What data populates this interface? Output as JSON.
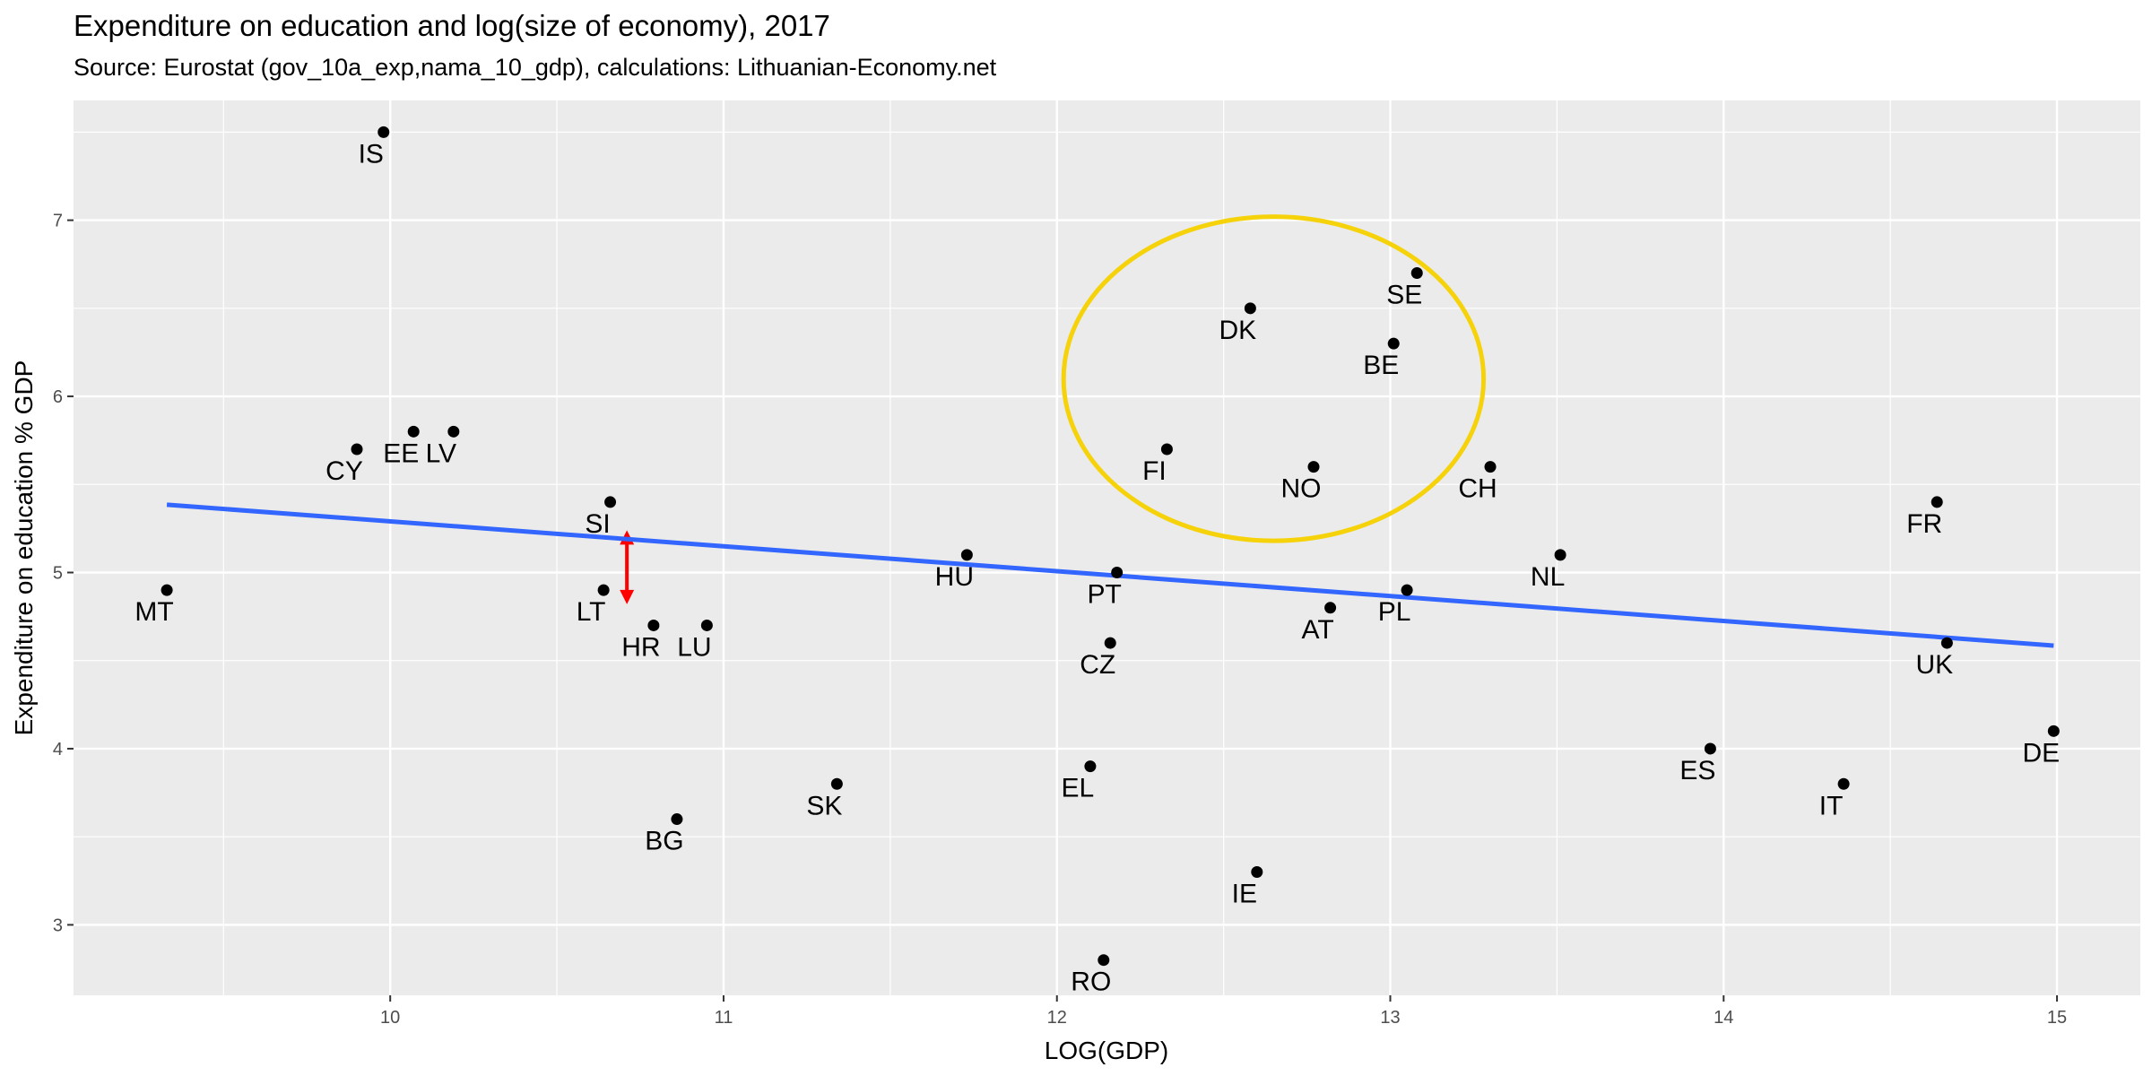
{
  "header": {
    "title": "Expenditure on education and log(size of economy), 2017",
    "subtitle": "Source: Eurostat (gov_10a_exp,nama_10_gdp), calculations: Lithuanian-Economy.net"
  },
  "colors": {
    "panel": "#ebebeb",
    "grid": "#ffffff",
    "point": "#000000",
    "trend": "#3366ff",
    "highlight_ellipse": "#f5d20a",
    "gap_arrow": "#ff0000"
  },
  "chart_data": {
    "type": "scatter",
    "title": "Expenditure on education and log(size of economy), 2017",
    "subtitle": "Source: Eurostat (gov_10a_exp,nama_10_gdp), calculations: Lithuanian-Economy.net",
    "xlabel": "LOG(GDP)",
    "ylabel": "Expenditure on education % GDP",
    "xlim": [
      9.05,
      15.25
    ],
    "ylim": [
      2.6,
      7.68
    ],
    "xticks": [
      10,
      11,
      12,
      13,
      14,
      15
    ],
    "yticks": [
      3,
      4,
      5,
      6,
      7
    ],
    "grid": true,
    "legend": "none",
    "points": [
      {
        "label": "IS",
        "x": 9.98,
        "y": 7.5
      },
      {
        "label": "CY",
        "x": 9.9,
        "y": 5.7
      },
      {
        "label": "EE",
        "x": 10.07,
        "y": 5.8
      },
      {
        "label": "LV",
        "x": 10.19,
        "y": 5.8
      },
      {
        "label": "MT",
        "x": 9.33,
        "y": 4.9
      },
      {
        "label": "SI",
        "x": 10.66,
        "y": 5.4
      },
      {
        "label": "LT",
        "x": 10.64,
        "y": 4.9
      },
      {
        "label": "HR",
        "x": 10.79,
        "y": 4.7
      },
      {
        "label": "LU",
        "x": 10.95,
        "y": 4.7
      },
      {
        "label": "BG",
        "x": 10.86,
        "y": 3.6
      },
      {
        "label": "SK",
        "x": 11.34,
        "y": 3.8
      },
      {
        "label": "HU",
        "x": 11.73,
        "y": 5.1
      },
      {
        "label": "PT",
        "x": 12.18,
        "y": 5.0
      },
      {
        "label": "CZ",
        "x": 12.16,
        "y": 4.6
      },
      {
        "label": "EL",
        "x": 12.1,
        "y": 3.9
      },
      {
        "label": "RO",
        "x": 12.14,
        "y": 2.8
      },
      {
        "label": "FI",
        "x": 12.33,
        "y": 5.7
      },
      {
        "label": "IE",
        "x": 12.6,
        "y": 3.3
      },
      {
        "label": "DK",
        "x": 12.58,
        "y": 6.5
      },
      {
        "label": "NO",
        "x": 12.77,
        "y": 5.6
      },
      {
        "label": "AT",
        "x": 12.82,
        "y": 4.8
      },
      {
        "label": "BE",
        "x": 13.01,
        "y": 6.3
      },
      {
        "label": "SE",
        "x": 13.08,
        "y": 6.7
      },
      {
        "label": "PL",
        "x": 13.05,
        "y": 4.9
      },
      {
        "label": "CH",
        "x": 13.3,
        "y": 5.6
      },
      {
        "label": "NL",
        "x": 13.51,
        "y": 5.1
      },
      {
        "label": "ES",
        "x": 13.96,
        "y": 4.0
      },
      {
        "label": "IT",
        "x": 14.36,
        "y": 3.8
      },
      {
        "label": "FR",
        "x": 14.64,
        "y": 5.4
      },
      {
        "label": "UK",
        "x": 14.67,
        "y": 4.6
      },
      {
        "label": "DE",
        "x": 14.99,
        "y": 4.1
      }
    ],
    "trend_line": {
      "x": [
        9.33,
        14.99
      ],
      "y": [
        5.385,
        4.585
      ]
    },
    "annotations": [
      {
        "type": "ellipse",
        "center": [
          12.65,
          6.1
        ],
        "radius": [
          0.63,
          0.92
        ]
      },
      {
        "type": "double-arrow",
        "x": 10.71,
        "y": [
          4.82,
          5.24
        ]
      }
    ]
  }
}
